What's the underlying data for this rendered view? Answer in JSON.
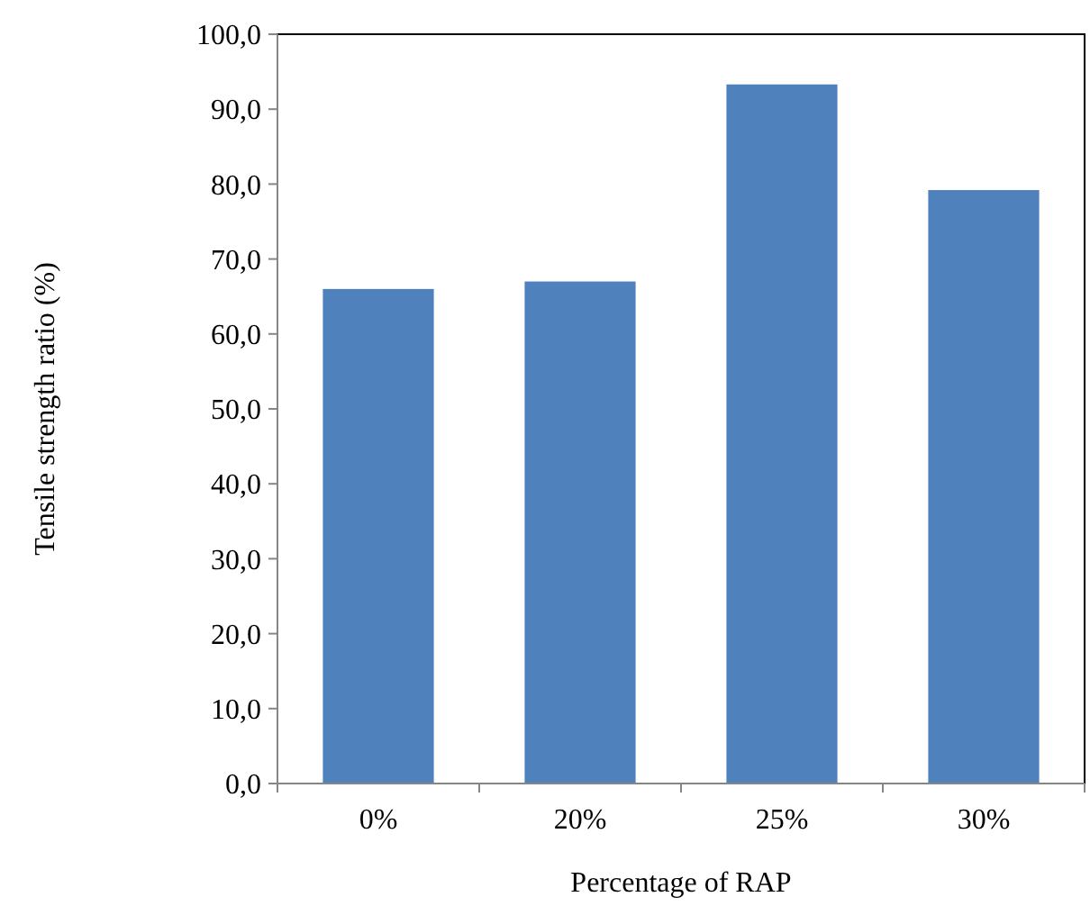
{
  "chart_data": {
    "type": "bar",
    "xlabel": "Percentage of RAP",
    "ylabel": "Tensile strength ratio (%)",
    "categories": [
      "0%",
      "20%",
      "25%",
      "30%"
    ],
    "values": [
      66,
      67,
      93.3,
      79.2
    ],
    "color": "#4f81bd",
    "ylim": [
      0,
      100
    ],
    "yticks": [
      {
        "value": 0,
        "label": "0,0"
      },
      {
        "value": 10,
        "label": "10,0"
      },
      {
        "value": 20,
        "label": "20,0"
      },
      {
        "value": 30,
        "label": "30,0"
      },
      {
        "value": 40,
        "label": "40,0"
      },
      {
        "value": 50,
        "label": "50,0"
      },
      {
        "value": 60,
        "label": "60,0"
      },
      {
        "value": 70,
        "label": "70,0"
      },
      {
        "value": 80,
        "label": "80,0"
      },
      {
        "value": 90,
        "label": "90,0"
      },
      {
        "value": 100,
        "label": "100,0"
      }
    ],
    "grid": false
  }
}
